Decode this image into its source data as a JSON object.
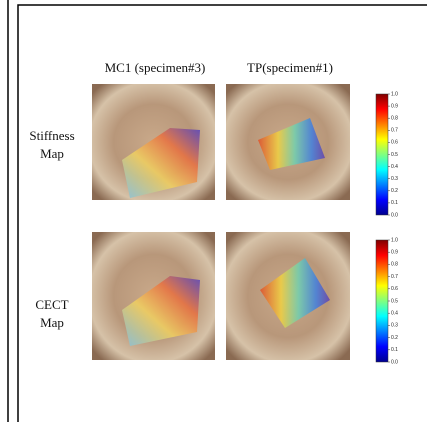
{
  "columns": [
    "MC1 (specimen#3)",
    "TP(specimen#1)"
  ],
  "rows": [
    {
      "label_lines": [
        "Stiffness",
        "Map"
      ]
    },
    {
      "label_lines": [
        "CECT",
        "Map"
      ]
    }
  ],
  "colorbars": [
    {
      "lim": [
        0,
        1
      ],
      "ticks": [
        {
          "value": 0,
          "label": "0.0"
        },
        0.1,
        0.2,
        0.3,
        0.4,
        0.5,
        0.6,
        0.7,
        0.8,
        0.9,
        {
          "value": 1,
          "label": "1.0"
        }
      ]
    },
    {
      "lim": [
        0,
        1
      ],
      "ticks": [
        {
          "value": 0,
          "label": "0.0"
        },
        0.1,
        0.2,
        0.3,
        0.4,
        0.5,
        0.6,
        0.7,
        0.8,
        0.9,
        {
          "value": 1,
          "label": "1.0"
        }
      ]
    }
  ]
}
